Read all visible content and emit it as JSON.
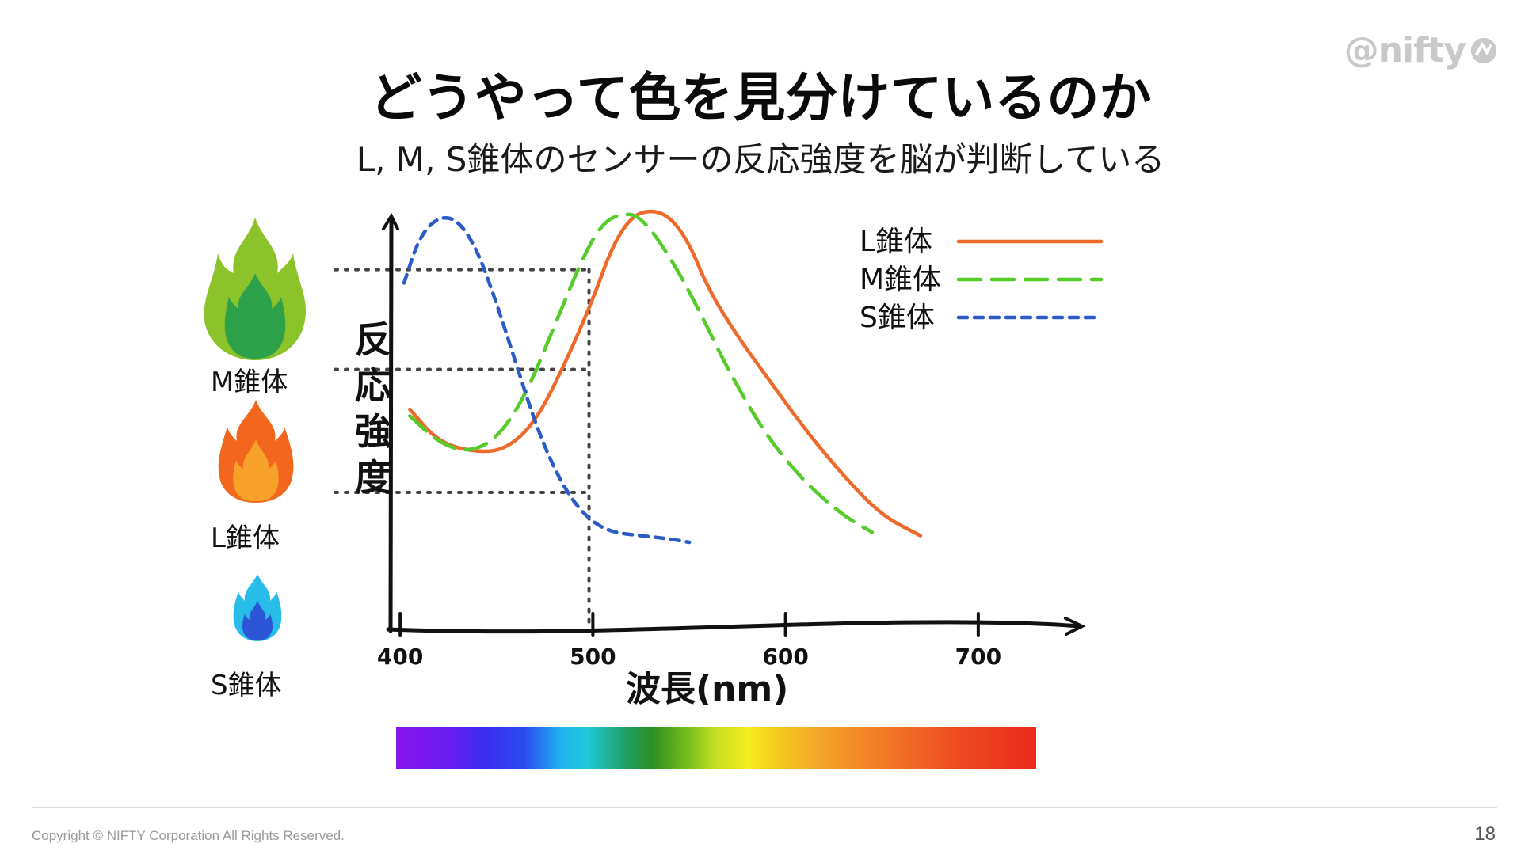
{
  "slide": {
    "logo_text": "@nifty",
    "title": "どうやって色を見分けているのか",
    "subtitle": "L, M, S錐体のセンサーの反応強度を脳が判断している",
    "page_number": "18",
    "copyright": "Copyright © NIFTY Corporation All Rights Reserved."
  },
  "cones": [
    {
      "label": "M錐体",
      "icon": "green-flame-icon",
      "color": "#8cc22a"
    },
    {
      "label": "L錐体",
      "icon": "orange-flame-icon",
      "color": "#f26a1f"
    },
    {
      "label": "S錐体",
      "icon": "blue-flame-icon",
      "color": "#27b8e6"
    }
  ],
  "chart_data": {
    "type": "line",
    "xlabel": "波長(nm)",
    "ylabel": "反応強度",
    "x_ticks": [
      "400",
      "500",
      "600",
      "700"
    ],
    "xlim": [
      395,
      735
    ],
    "ylim": [
      0,
      1
    ],
    "legend_position": "top-right",
    "series": [
      {
        "name": "L錐体",
        "color": "#ee6a2a",
        "dash": "solid",
        "x": [
          405,
          420,
          440,
          455,
          470,
          485,
          500,
          510,
          520,
          530,
          540,
          550,
          560,
          575,
          590,
          610,
          630,
          650,
          670
        ],
        "y": [
          0.4,
          0.3,
          0.27,
          0.28,
          0.36,
          0.53,
          0.73,
          0.89,
          0.98,
          1.0,
          0.98,
          0.9,
          0.76,
          0.62,
          0.5,
          0.34,
          0.2,
          0.08,
          0.02
        ]
      },
      {
        "name": "M錐体",
        "color": "#55cc2a",
        "dash": "long-dash",
        "x": [
          405,
          420,
          435,
          450,
          465,
          480,
          495,
          505,
          515,
          525,
          540,
          555,
          570,
          590,
          610,
          630,
          645
        ],
        "y": [
          0.38,
          0.3,
          0.27,
          0.31,
          0.44,
          0.65,
          0.86,
          0.96,
          0.99,
          0.98,
          0.86,
          0.7,
          0.52,
          0.32,
          0.18,
          0.08,
          0.03
        ]
      },
      {
        "name": "S錐体",
        "color": "#2a5bc6",
        "dash": "short-dash",
        "x": [
          402,
          410,
          420,
          430,
          440,
          450,
          460,
          470,
          480,
          490,
          500,
          510,
          525,
          540,
          550
        ],
        "y": [
          0.78,
          0.92,
          0.98,
          0.97,
          0.88,
          0.72,
          0.54,
          0.36,
          0.22,
          0.12,
          0.06,
          0.03,
          0.02,
          0.01,
          0.0
        ]
      }
    ],
    "reference_lines": {
      "x": 498,
      "y": [
        0.82,
        0.52,
        0.15
      ]
    }
  }
}
